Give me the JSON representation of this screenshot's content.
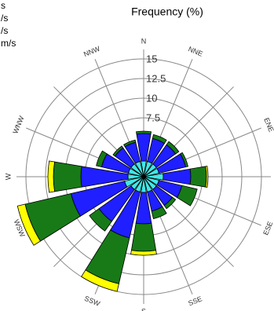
{
  "chart_data": {
    "type": "windrose",
    "title": "Frequency (%)",
    "categories": [
      "N",
      "NNE",
      null,
      "ENE",
      null,
      "ESE",
      null,
      "SSE",
      "S",
      "SSW",
      null,
      "WSW",
      "W",
      "WNW",
      null,
      "NNW"
    ],
    "series": [
      {
        "name": "s",
        "color": "#40e8e8",
        "values": [
          2,
          2,
          2,
          2,
          2.5,
          2,
          2,
          2,
          2,
          2,
          2,
          2.5,
          2,
          2,
          2,
          2
        ]
      },
      {
        "name": "/s",
        "color": "#1f1fff",
        "values": [
          3.5,
          3,
          3,
          3.5,
          3.5,
          3,
          2.5,
          2.5,
          4,
          6,
          5,
          7,
          6,
          3.5,
          2.5,
          2.5
        ]
      },
      {
        "name": "/s",
        "color": "#177a17",
        "values": [
          0.3,
          0.5,
          0.5,
          0.3,
          2,
          2,
          0.5,
          1,
          3.5,
          6,
          1.5,
          6,
          3.5,
          0.7,
          0.3,
          0.3
        ]
      },
      {
        "name": "m/s",
        "color": "#ffff00",
        "values": [
          0,
          0,
          0,
          0,
          0.2,
          0,
          0,
          0,
          0.5,
          1,
          0,
          1,
          0.7,
          0,
          0,
          0
        ]
      }
    ],
    "rlim": [
      0,
      15
    ],
    "rticks": [
      7.5,
      10,
      12.5,
      15
    ]
  }
}
